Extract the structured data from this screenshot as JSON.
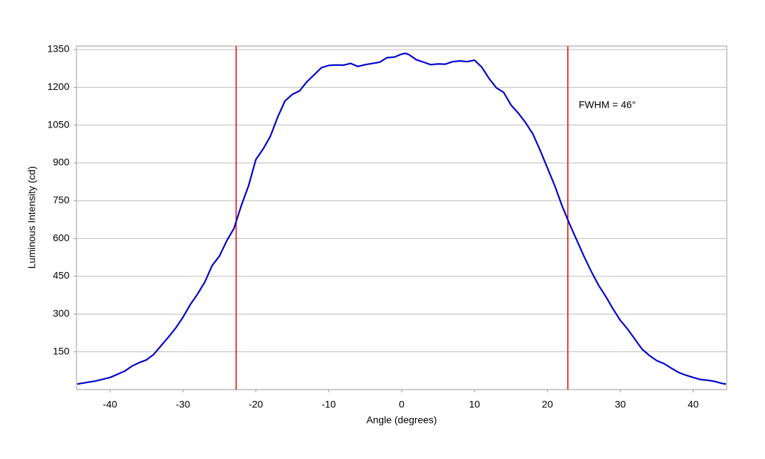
{
  "chart_data": {
    "type": "line",
    "x_label": "Angle (degrees)",
    "y_label": "Luminous Intensity (cd)",
    "annotation": "FWHM = 46°",
    "x": [
      -44.5,
      -42,
      -40,
      -38,
      -37,
      -36,
      -35,
      -34,
      -33,
      -32,
      -31,
      -30,
      -29,
      -28,
      -27,
      -26,
      -25,
      -24,
      -23,
      -22,
      -21,
      -20,
      -19,
      -18,
      -17,
      -16,
      -15,
      -14,
      -13,
      -12,
      -11,
      -10,
      -9,
      -8,
      -7,
      -6,
      -5,
      -4,
      -3,
      -2,
      -1,
      0,
      0.5,
      1,
      2,
      3,
      4,
      5,
      6,
      7,
      8,
      9,
      10,
      11,
      12,
      13,
      14,
      15,
      16,
      17,
      18,
      19,
      20,
      21,
      22,
      23,
      24,
      25,
      26,
      27,
      28,
      29,
      30,
      31,
      32,
      33,
      34,
      35,
      36,
      37,
      38,
      39,
      40,
      41,
      42,
      43,
      44,
      44.5
    ],
    "series": [
      {
        "name": "Luminous Intensity",
        "color": "#0000cc",
        "values": [
          22,
          34,
          48,
          73,
          93,
          107,
          118,
          140,
          174,
          208,
          244,
          287,
          337,
          379,
          427,
          492,
          530,
          590,
          640,
          730,
          809,
          913,
          955,
          1006,
          1082,
          1146,
          1172,
          1186,
          1222,
          1250,
          1278,
          1287,
          1289,
          1288,
          1295,
          1283,
          1290,
          1295,
          1300,
          1318,
          1320,
          1332,
          1335,
          1330,
          1310,
          1300,
          1290,
          1293,
          1292,
          1302,
          1305,
          1302,
          1308,
          1280,
          1235,
          1198,
          1180,
          1130,
          1098,
          1060,
          1015,
          950,
          880,
          810,
          730,
          660,
          595,
          530,
          470,
          415,
          370,
          320,
          275,
          240,
          200,
          160,
          135,
          115,
          103,
          85,
          68,
          57,
          48,
          40,
          37,
          32,
          24,
          22
        ]
      }
    ],
    "vlines": [
      -22.7,
      22.8
    ],
    "vline_color": "#dd0000",
    "xlim": [
      -44.6,
      44.6
    ],
    "ylim": [
      0,
      1364
    ],
    "xticks": [
      -40,
      -30,
      -20,
      -10,
      0,
      10,
      20,
      30,
      40
    ],
    "yticks": [
      150,
      300,
      450,
      600,
      750,
      900,
      1050,
      1200,
      1350
    ],
    "grid": true
  }
}
